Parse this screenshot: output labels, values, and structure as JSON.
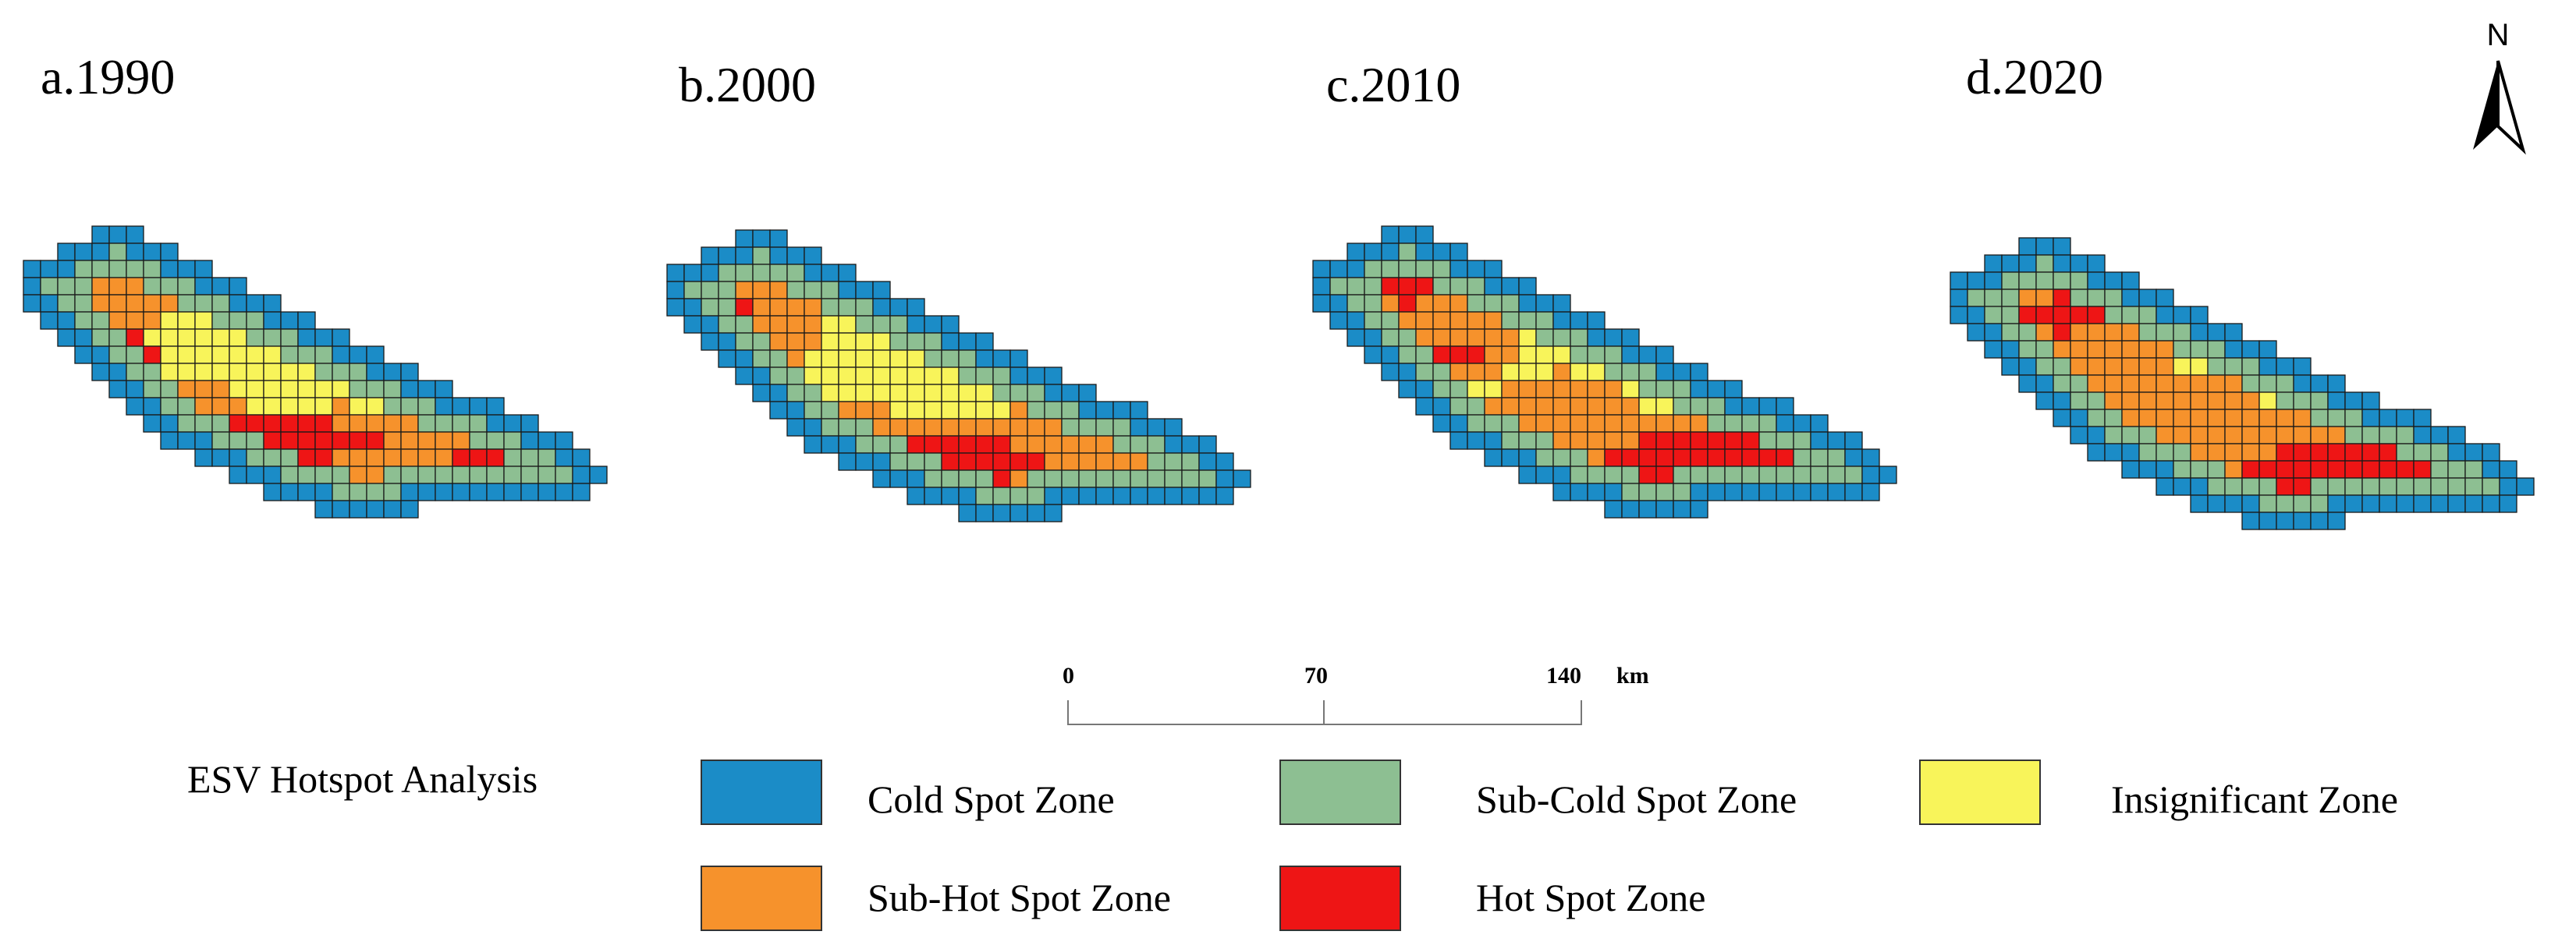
{
  "colors": {
    "cold": "#1b8cc7",
    "sub_cold": "#8dbf92",
    "insignificant": "#f8f45a",
    "sub_hot": "#f6922c",
    "hot": "#ee1515",
    "grid_line": "#1a1a1a"
  },
  "panels": [
    {
      "label": "a.1990"
    },
    {
      "label": "b.2000"
    },
    {
      "label": "c.2010"
    },
    {
      "label": "d.2020"
    }
  ],
  "north_arrow": {
    "label": "N"
  },
  "scale_bar": {
    "ticks": [
      "0",
      "70",
      "140"
    ],
    "unit": "km"
  },
  "legend": {
    "title": "ESV Hotspot Analysis",
    "items": [
      {
        "key": "cold",
        "label": "Cold Spot Zone"
      },
      {
        "key": "sub_cold",
        "label": "Sub-Cold Spot Zone"
      },
      {
        "key": "insignificant",
        "label": "Insignificant Zone"
      },
      {
        "key": "sub_hot",
        "label": "Sub-Hot Spot Zone"
      },
      {
        "key": "hot",
        "label": "Hot Spot Zone"
      }
    ]
  }
}
